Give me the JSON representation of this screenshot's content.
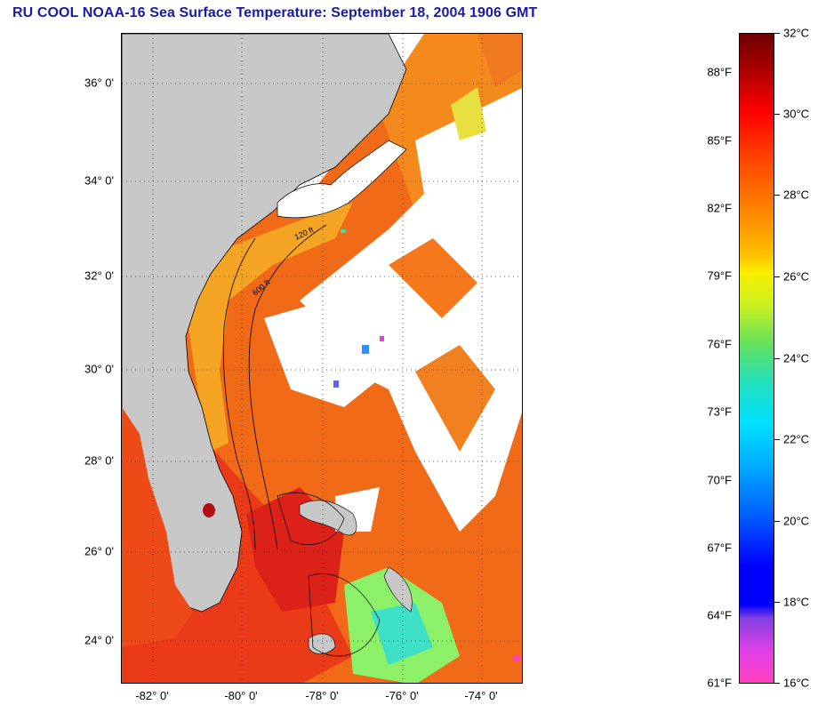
{
  "title": "RU COOL  NOAA-16  Sea Surface Temperature:  September 18, 2004 1906 GMT",
  "colors": {
    "title": "#1a1aa6",
    "land": "#c8c8c8",
    "cloud": "#ffffff",
    "sst_warm": "#f25a14",
    "sst_hot": "#e01e1e",
    "sst_shelf": "#f5a020",
    "sst_cool": "#30e8a0"
  },
  "map": {
    "latitude_labels": [
      "36° 0'",
      "34° 0'",
      "32° 0'",
      "30° 0'",
      "28° 0'",
      "26° 0'",
      "24° 0'"
    ],
    "longitude_labels": [
      "-82° 0'",
      "-80° 0'",
      "-78° 0'",
      "-76° 0'",
      "-74° 0'"
    ],
    "contour_labels": [
      "120 ft",
      "600 ft"
    ]
  },
  "colorbar": {
    "fahrenheit_labels": [
      "88°F",
      "85°F",
      "82°F",
      "79°F",
      "76°F",
      "73°F",
      "70°F",
      "67°F",
      "64°F",
      "61°F"
    ],
    "celsius_labels": [
      "32°C",
      "30°C",
      "28°C",
      "26°C",
      "24°C",
      "22°C",
      "20°C",
      "18°C",
      "16°C"
    ]
  }
}
